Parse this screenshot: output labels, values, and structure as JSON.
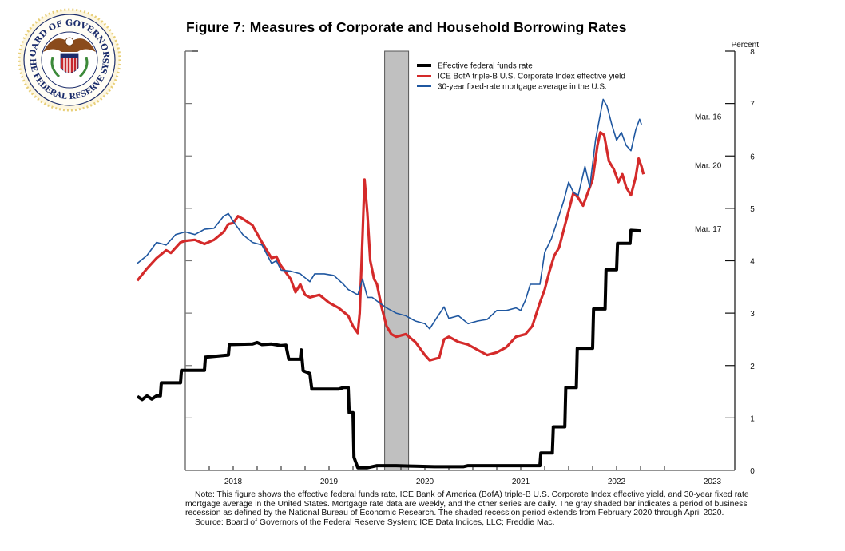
{
  "header": {
    "logo_alt": "Board of Governors of the Federal Reserve System seal",
    "seal_text_top": "BOARD OF GOVERNORS",
    "seal_text_bottom": "OF THE FEDERAL RESERVE SYSTEM"
  },
  "chart_data": {
    "type": "line",
    "title": "Figure 7: Measures of Corporate and Household Borrowing Rates",
    "ylabel": "Percent",
    "ylim": [
      0,
      8
    ],
    "yticks": [
      "0",
      "1",
      "2",
      "3",
      "4",
      "5",
      "6",
      "7",
      "8"
    ],
    "xlim": [
      2017.5,
      2023.5
    ],
    "xticks": [
      "2018",
      "2019",
      "2020",
      "2021",
      "2022",
      "2023"
    ],
    "y_axis_side": "right",
    "grid": false,
    "legend_position": "top-center",
    "recession_shading": {
      "start": 2020.08,
      "end": 2020.33,
      "label": "Feb 2020 - Apr 2020"
    },
    "series": [
      {
        "name": "Effective federal funds rate",
        "color": "#000000",
        "end_label": "Mar. 17",
        "points": [
          [
            2017.5,
            1.41
          ],
          [
            2017.55,
            1.35
          ],
          [
            2017.6,
            1.42
          ],
          [
            2017.65,
            1.36
          ],
          [
            2017.7,
            1.42
          ],
          [
            2017.74,
            1.42
          ],
          [
            2017.75,
            1.67
          ],
          [
            2017.95,
            1.67
          ],
          [
            2017.96,
            1.91
          ],
          [
            2018.2,
            1.91
          ],
          [
            2018.21,
            2.16
          ],
          [
            2018.45,
            2.2
          ],
          [
            2018.46,
            2.4
          ],
          [
            2018.7,
            2.41
          ],
          [
            2018.75,
            2.44
          ],
          [
            2018.8,
            2.4
          ],
          [
            2018.9,
            2.41
          ],
          [
            2019.0,
            2.38
          ],
          [
            2019.05,
            2.39
          ],
          [
            2019.08,
            2.12
          ],
          [
            2019.2,
            2.12
          ],
          [
            2019.21,
            2.3
          ],
          [
            2019.23,
            1.9
          ],
          [
            2019.3,
            1.85
          ],
          [
            2019.32,
            1.55
          ],
          [
            2019.6,
            1.55
          ],
          [
            2019.65,
            1.58
          ],
          [
            2019.7,
            1.58
          ],
          [
            2019.71,
            1.1
          ],
          [
            2019.75,
            1.1
          ],
          [
            2019.76,
            0.25
          ],
          [
            2019.8,
            0.05
          ],
          [
            2019.9,
            0.05
          ],
          [
            2020.0,
            0.09
          ],
          [
            2020.2,
            0.09
          ],
          [
            2020.4,
            0.08
          ],
          [
            2020.6,
            0.07
          ],
          [
            2020.9,
            0.07
          ],
          [
            2020.95,
            0.09
          ],
          [
            2021.5,
            0.09
          ],
          [
            2021.7,
            0.09
          ],
          [
            2021.71,
            0.33
          ],
          [
            2021.83,
            0.33
          ],
          [
            2021.84,
            0.83
          ],
          [
            2021.96,
            0.83
          ],
          [
            2021.97,
            1.58
          ],
          [
            2022.08,
            1.58
          ],
          [
            2022.09,
            2.33
          ],
          [
            2022.25,
            2.33
          ],
          [
            2022.26,
            3.08
          ],
          [
            2022.38,
            3.08
          ],
          [
            2022.39,
            3.83
          ],
          [
            2022.5,
            3.83
          ],
          [
            2022.51,
            4.33
          ],
          [
            2022.64,
            4.33
          ],
          [
            2022.65,
            4.58
          ],
          [
            2022.75,
            4.57
          ]
        ]
      },
      {
        "name": "ICE BofA triple-B U.S. Corporate Index effective yield",
        "color": "#d42a2a",
        "end_label": "Mar. 20",
        "points": [
          [
            2017.5,
            3.62
          ],
          [
            2017.6,
            3.85
          ],
          [
            2017.7,
            4.05
          ],
          [
            2017.8,
            4.2
          ],
          [
            2017.85,
            4.15
          ],
          [
            2017.95,
            4.35
          ],
          [
            2018.0,
            4.38
          ],
          [
            2018.1,
            4.4
          ],
          [
            2018.2,
            4.32
          ],
          [
            2018.3,
            4.4
          ],
          [
            2018.4,
            4.55
          ],
          [
            2018.45,
            4.7
          ],
          [
            2018.5,
            4.72
          ],
          [
            2018.55,
            4.85
          ],
          [
            2018.6,
            4.8
          ],
          [
            2018.7,
            4.68
          ],
          [
            2018.8,
            4.35
          ],
          [
            2018.9,
            4.05
          ],
          [
            2018.95,
            4.08
          ],
          [
            2019.0,
            3.9
          ],
          [
            2019.1,
            3.65
          ],
          [
            2019.15,
            3.4
          ],
          [
            2019.2,
            3.55
          ],
          [
            2019.25,
            3.35
          ],
          [
            2019.3,
            3.3
          ],
          [
            2019.4,
            3.35
          ],
          [
            2019.5,
            3.2
          ],
          [
            2019.6,
            3.1
          ],
          [
            2019.7,
            2.95
          ],
          [
            2019.75,
            2.75
          ],
          [
            2019.8,
            2.62
          ],
          [
            2019.82,
            3.0
          ],
          [
            2019.85,
            4.5
          ],
          [
            2019.87,
            5.55
          ],
          [
            2019.9,
            4.9
          ],
          [
            2019.93,
            4.0
          ],
          [
            2019.97,
            3.65
          ],
          [
            2020.0,
            3.55
          ],
          [
            2020.05,
            3.1
          ],
          [
            2020.1,
            2.75
          ],
          [
            2020.15,
            2.6
          ],
          [
            2020.2,
            2.55
          ],
          [
            2020.3,
            2.6
          ],
          [
            2020.4,
            2.45
          ],
          [
            2020.5,
            2.2
          ],
          [
            2020.55,
            2.1
          ],
          [
            2020.65,
            2.15
          ],
          [
            2020.7,
            2.5
          ],
          [
            2020.75,
            2.55
          ],
          [
            2020.85,
            2.45
          ],
          [
            2020.95,
            2.4
          ],
          [
            2021.05,
            2.3
          ],
          [
            2021.15,
            2.2
          ],
          [
            2021.25,
            2.25
          ],
          [
            2021.35,
            2.35
          ],
          [
            2021.45,
            2.55
          ],
          [
            2021.55,
            2.6
          ],
          [
            2021.62,
            2.75
          ],
          [
            2021.7,
            3.2
          ],
          [
            2021.75,
            3.45
          ],
          [
            2021.8,
            3.8
          ],
          [
            2021.85,
            4.1
          ],
          [
            2021.9,
            4.25
          ],
          [
            2021.95,
            4.6
          ],
          [
            2022.0,
            4.95
          ],
          [
            2022.05,
            5.3
          ],
          [
            2022.1,
            5.2
          ],
          [
            2022.15,
            5.05
          ],
          [
            2022.2,
            5.3
          ],
          [
            2022.25,
            5.55
          ],
          [
            2022.3,
            6.2
          ],
          [
            2022.33,
            6.45
          ],
          [
            2022.37,
            6.4
          ],
          [
            2022.42,
            5.9
          ],
          [
            2022.47,
            5.75
          ],
          [
            2022.52,
            5.5
          ],
          [
            2022.56,
            5.65
          ],
          [
            2022.6,
            5.4
          ],
          [
            2022.65,
            5.25
          ],
          [
            2022.7,
            5.6
          ],
          [
            2022.73,
            5.95
          ],
          [
            2022.76,
            5.8
          ],
          [
            2022.78,
            5.65
          ]
        ]
      },
      {
        "name": "30-year fixed-rate mortgage average in the U.S.",
        "color": "#1f57a0",
        "end_label": "Mar. 16",
        "points": [
          [
            2017.5,
            3.95
          ],
          [
            2017.6,
            4.1
          ],
          [
            2017.7,
            4.35
          ],
          [
            2017.8,
            4.3
          ],
          [
            2017.9,
            4.5
          ],
          [
            2018.0,
            4.55
          ],
          [
            2018.1,
            4.5
          ],
          [
            2018.2,
            4.6
          ],
          [
            2018.3,
            4.62
          ],
          [
            2018.4,
            4.85
          ],
          [
            2018.45,
            4.9
          ],
          [
            2018.5,
            4.75
          ],
          [
            2018.6,
            4.5
          ],
          [
            2018.7,
            4.35
          ],
          [
            2018.8,
            4.3
          ],
          [
            2018.9,
            3.95
          ],
          [
            2018.95,
            4.0
          ],
          [
            2019.0,
            3.82
          ],
          [
            2019.1,
            3.8
          ],
          [
            2019.2,
            3.75
          ],
          [
            2019.3,
            3.6
          ],
          [
            2019.35,
            3.75
          ],
          [
            2019.45,
            3.75
          ],
          [
            2019.55,
            3.72
          ],
          [
            2019.65,
            3.55
          ],
          [
            2019.7,
            3.45
          ],
          [
            2019.8,
            3.35
          ],
          [
            2019.85,
            3.65
          ],
          [
            2019.9,
            3.3
          ],
          [
            2019.95,
            3.3
          ],
          [
            2020.0,
            3.23
          ],
          [
            2020.1,
            3.1
          ],
          [
            2020.2,
            3.0
          ],
          [
            2020.3,
            2.95
          ],
          [
            2020.4,
            2.85
          ],
          [
            2020.5,
            2.8
          ],
          [
            2020.55,
            2.7
          ],
          [
            2020.62,
            2.9
          ],
          [
            2020.7,
            3.12
          ],
          [
            2020.75,
            2.9
          ],
          [
            2020.85,
            2.95
          ],
          [
            2020.95,
            2.8
          ],
          [
            2021.05,
            2.85
          ],
          [
            2021.15,
            2.88
          ],
          [
            2021.25,
            3.05
          ],
          [
            2021.35,
            3.05
          ],
          [
            2021.45,
            3.1
          ],
          [
            2021.5,
            3.05
          ],
          [
            2021.55,
            3.25
          ],
          [
            2021.6,
            3.55
          ],
          [
            2021.7,
            3.55
          ],
          [
            2021.75,
            4.16
          ],
          [
            2021.82,
            4.42
          ],
          [
            2021.88,
            4.75
          ],
          [
            2021.95,
            5.15
          ],
          [
            2022.0,
            5.5
          ],
          [
            2022.05,
            5.3
          ],
          [
            2022.1,
            5.25
          ],
          [
            2022.17,
            5.8
          ],
          [
            2022.22,
            5.4
          ],
          [
            2022.28,
            6.3
          ],
          [
            2022.32,
            6.7
          ],
          [
            2022.36,
            7.08
          ],
          [
            2022.4,
            6.95
          ],
          [
            2022.45,
            6.6
          ],
          [
            2022.5,
            6.3
          ],
          [
            2022.55,
            6.45
          ],
          [
            2022.6,
            6.2
          ],
          [
            2022.65,
            6.1
          ],
          [
            2022.7,
            6.5
          ],
          [
            2022.74,
            6.7
          ],
          [
            2022.76,
            6.6
          ]
        ]
      }
    ]
  },
  "note": {
    "body": "Note: This figure shows the effective federal funds rate, ICE Bank of America (BofA) triple-B U.S. Corporate Index effective yield, and 30-year fixed rate mortgage average in the United States. Mortgage rate data are weekly, and the other series are daily.  The gray shaded bar indicates a period of business recession as defined by the National Bureau of Economic Research. The shaded recession period extends from February 2020 through April 2020.",
    "source": "Source: Board of Governors of the Federal Reserve System; ICE Data Indices, LLC; Freddie Mac."
  }
}
